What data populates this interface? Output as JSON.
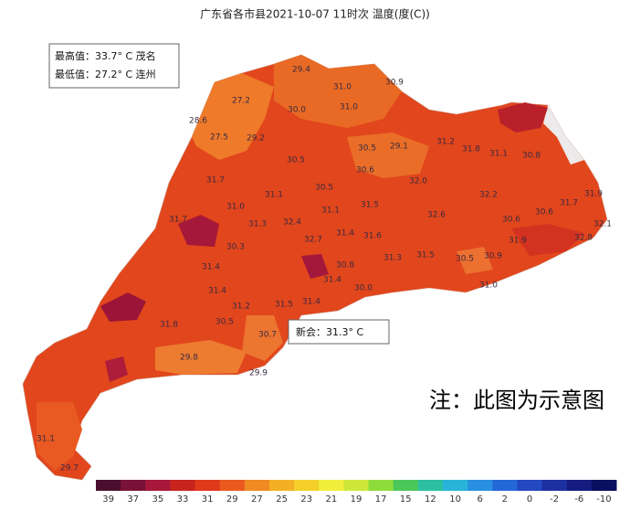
{
  "header": {
    "title": "广东省各市县2021-10-07  11时次  温度(度(C))"
  },
  "info": {
    "max": "最高值：33.7° C 茂名",
    "min": "最低值：27.2° C 连州"
  },
  "callout": "新会：31.3° C",
  "note": "注：此图为示意图",
  "map_labels": [
    "29.4",
    "31.0",
    "30.9",
    "27.2",
    "30.0",
    "31.0",
    "28.6",
    "27.5",
    "29.2",
    "31.2",
    "30.5",
    "29.1",
    "31.8",
    "31.1",
    "30.5",
    "30.8",
    "30.6",
    "31.7",
    "31.1",
    "30.5",
    "32.0",
    "32.2",
    "31.9",
    "31.0",
    "31.1",
    "31.5",
    "31.7",
    "31.7",
    "31.3",
    "32.4",
    "32.6",
    "30.6",
    "30.6",
    "32.1",
    "32.8",
    "30.3",
    "31.4",
    "31.6",
    "31.9",
    "31.4",
    "32.7",
    "30.8",
    "31.3",
    "31.5",
    "30.5",
    "30.9",
    "31.0",
    "31.4",
    "31.4",
    "30.0",
    "31.5",
    "31.4",
    "31.8",
    "31.2",
    "30.5",
    "30.7",
    "29.8",
    "29.9",
    "31.1",
    "29.7"
  ],
  "legend": {
    "ticks": [
      39,
      37,
      35,
      33,
      31,
      29,
      27,
      25,
      23,
      21,
      19,
      17,
      15,
      12,
      10,
      6,
      2,
      0,
      -2,
      -6,
      -10
    ]
  }
}
